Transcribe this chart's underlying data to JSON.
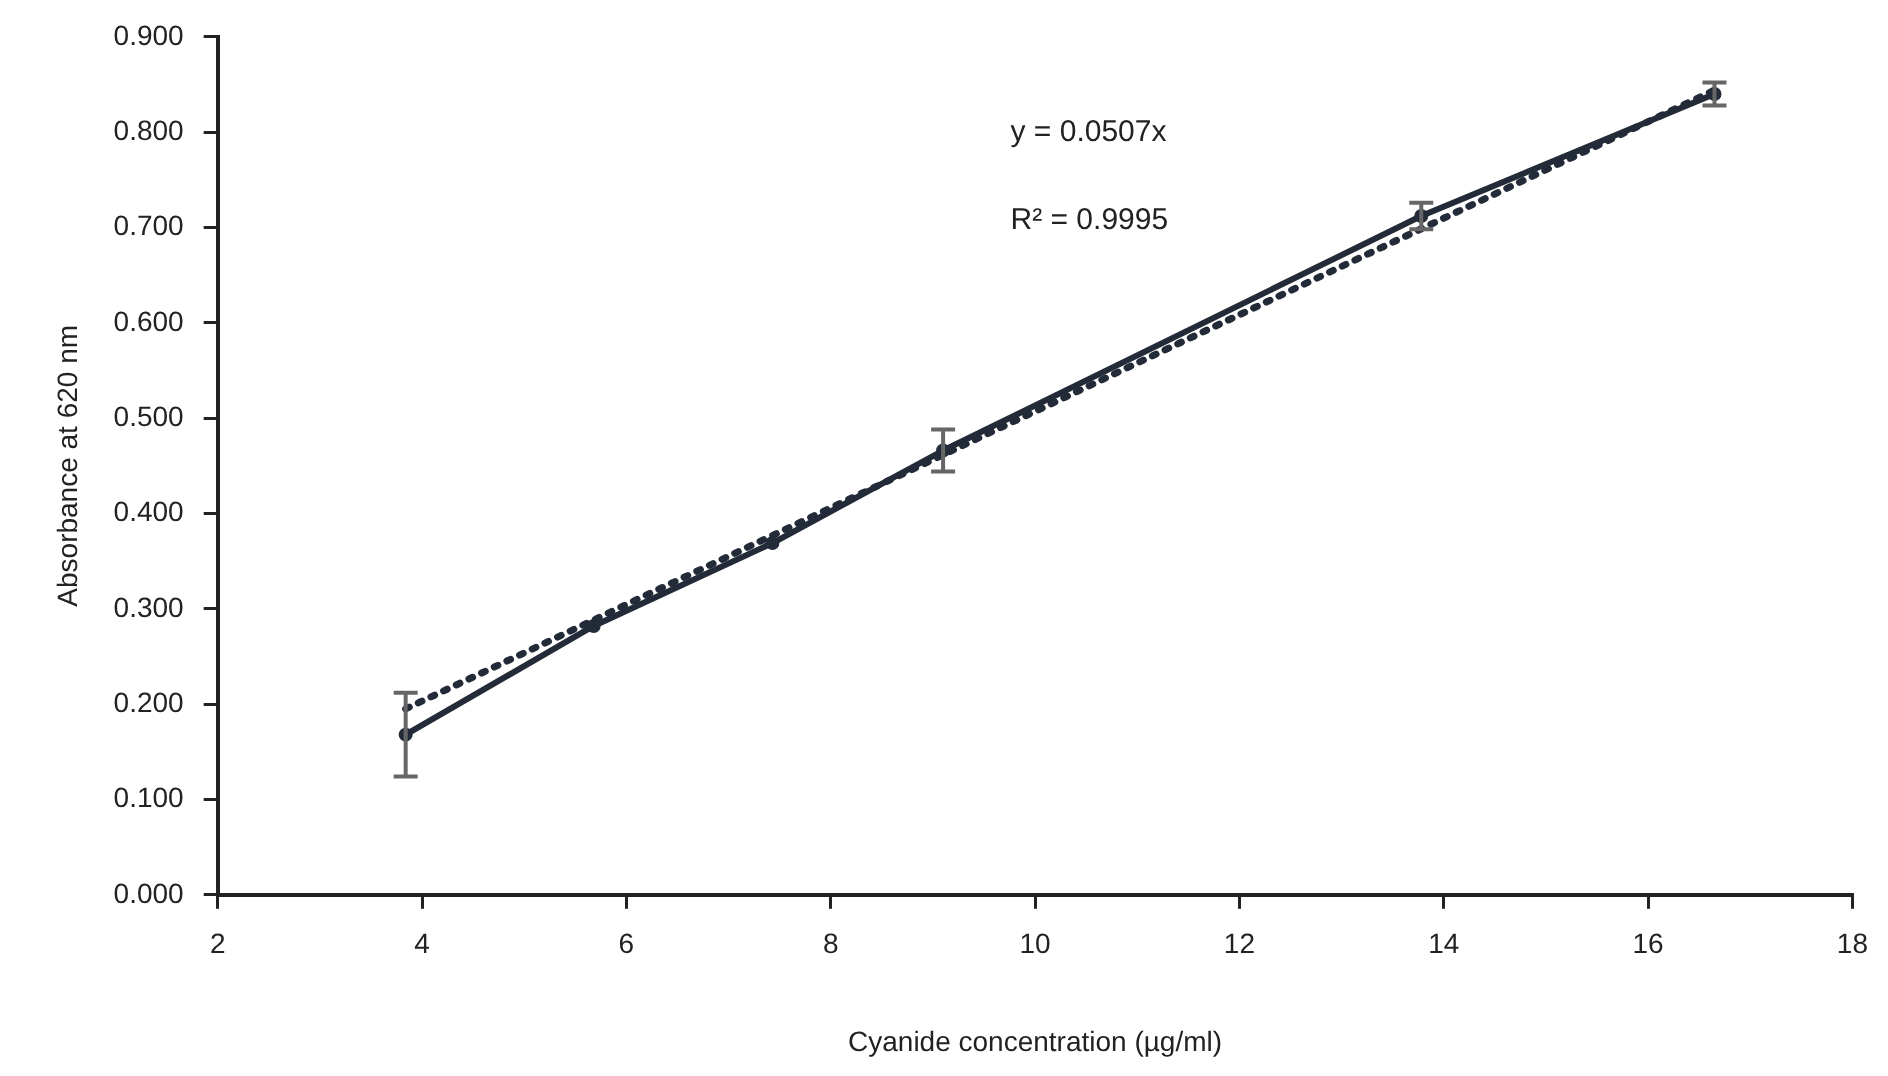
{
  "chart_data": {
    "type": "line",
    "xlabel": "Cyanide concentration (µg/ml)",
    "ylabel": "Absorbance at 620 nm",
    "annotations": [
      "y = 0.0507x",
      "R² = 0.9995"
    ],
    "xlim": [
      2,
      18
    ],
    "xticks": [
      2,
      4,
      6,
      8,
      10,
      12,
      14,
      16,
      18
    ],
    "ylim": [
      0,
      0.9
    ],
    "yticks": [
      {
        "value": 0,
        "label": "0.000"
      },
      {
        "value": 0.1,
        "label": "0.100"
      },
      {
        "value": 0.2,
        "label": "0.200"
      },
      {
        "value": 0.3,
        "label": "0.300"
      },
      {
        "value": 0.4,
        "label": "0.400"
      },
      {
        "value": 0.5,
        "label": "0.500"
      },
      {
        "value": 0.6,
        "label": "0.600"
      },
      {
        "value": 0.7,
        "label": "0.700"
      },
      {
        "value": 0.8,
        "label": "0.800"
      },
      {
        "value": 0.9,
        "label": "0.900"
      }
    ],
    "grid": false,
    "legend": false,
    "series": [
      {
        "color": "#232b38",
        "x": [
          3.84,
          5.68,
          7.43,
          9.1,
          13.78,
          16.65
        ],
        "values": [
          0.168,
          0.282,
          0.369,
          0.466,
          0.712,
          0.84
        ],
        "errors": [
          0.044,
          null,
          null,
          0.022,
          0.014,
          0.012
        ],
        "marker": "circle",
        "line_style": "solid"
      },
      {
        "color": "#232b38",
        "x": [
          3.84,
          16.65
        ],
        "values": [
          0.195,
          0.844
        ],
        "marker": "none",
        "line_style": "dotted"
      }
    ]
  }
}
